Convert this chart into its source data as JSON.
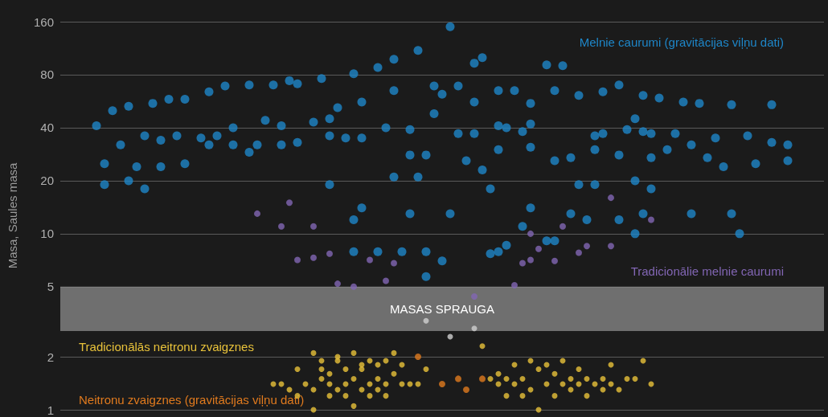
{
  "chart_data": {
    "type": "scatter",
    "ylabel": "Masa, Saules masa",
    "categories": [
      null,
      null,
      null,
      null,
      null,
      null,
      null,
      null,
      null,
      null,
      null,
      null,
      null,
      null,
      null,
      null,
      null,
      null,
      null,
      null,
      null,
      null,
      null,
      null,
      null,
      null,
      null,
      null,
      null,
      null,
      null,
      null,
      null,
      null,
      null,
      null,
      null,
      null,
      null,
      null,
      null,
      null,
      null,
      null,
      null,
      null,
      null,
      null,
      null,
      null,
      null,
      null,
      null,
      null,
      null,
      null,
      null,
      null,
      null,
      null,
      null,
      null,
      null,
      null,
      null,
      null,
      null,
      null,
      null,
      null,
      null,
      null,
      null,
      null,
      null,
      null,
      null,
      null,
      null,
      null,
      null,
      null,
      null,
      null,
      null,
      null,
      null,
      null,
      null,
      null,
      null,
      null,
      null,
      null,
      null
    ],
    "log": "y",
    "ylim": [
      1,
      160
    ],
    "yticks": [
      1,
      2,
      5,
      10,
      20,
      40,
      80,
      160
    ],
    "grid": "y",
    "tick_labels": "y",
    "marker": "circle",
    "bands": [
      {
        "axis": "y",
        "from": 2.8,
        "to": 5,
        "label": "MASAS SPRAUGA",
        "color": "#8c8c8c"
      }
    ],
    "series": [
      {
        "name": "Melnie caurumi (gravitācijas viļņu dati)",
        "color": "#1e86c8",
        "values": [
          null,
          null,
          null,
          null,
          41,
          25,
          50,
          32,
          20,
          24,
          18,
          55,
          34,
          58,
          36,
          25,
          null,
          35,
          32,
          36,
          69,
          32,
          null,
          29,
          32,
          44,
          70,
          32,
          74,
          33,
          null,
          43,
          76,
          45,
          52,
          35,
          81,
          56,
          null,
          88,
          40,
          65,
          7.9,
          28,
          110,
          28,
          69,
          62,
          150,
          37,
          26,
          93,
          23,
          18,
          41,
          40,
          65,
          38,
          55,
          null,
          91,
          65,
          90,
          27,
          61,
          12,
          36,
          64,
          null,
          70,
          39,
          45,
          38,
          37,
          59,
          30,
          37,
          56,
          32,
          55,
          27,
          35,
          24,
          54,
          10,
          36,
          25,
          null,
          54,
          null,
          32,
          null,
          null,
          null,
          null
        ]
      },
      {
        "color": "#1e86c8",
        "values": [
          null,
          null,
          null,
          null,
          null,
          19,
          null,
          null,
          53,
          null,
          36,
          null,
          24,
          null,
          null,
          58,
          null,
          null,
          64,
          null,
          null,
          40,
          null,
          70,
          null,
          null,
          null,
          41,
          null,
          71,
          null,
          null,
          null,
          36,
          null,
          null,
          12,
          35,
          null,
          7.9,
          null,
          98,
          null,
          39,
          21,
          5.7,
          48,
          7.0,
          13,
          69,
          null,
          56,
          100,
          7.7,
          65,
          8.6,
          null,
          11,
          31,
          null,
          9.1,
          26,
          null,
          13,
          19,
          null,
          30,
          37,
          null,
          28,
          null,
          10,
          61,
          27,
          null,
          null,
          null,
          null,
          13,
          null,
          null,
          null,
          null,
          13,
          null,
          null,
          null,
          null,
          33,
          null,
          26,
          null,
          null,
          null,
          null
        ]
      },
      {
        "color": "#1e86c8",
        "values": [
          null,
          null,
          null,
          null,
          null,
          null,
          null,
          null,
          null,
          null,
          null,
          null,
          null,
          null,
          null,
          null,
          null,
          null,
          null,
          null,
          null,
          null,
          null,
          null,
          null,
          null,
          null,
          null,
          null,
          null,
          null,
          null,
          null,
          19,
          null,
          null,
          7.9,
          14,
          null,
          null,
          null,
          21,
          null,
          13,
          null,
          7.9,
          null,
          null,
          null,
          null,
          null,
          37,
          null,
          null,
          30,
          null,
          null,
          null,
          42,
          null,
          null,
          9.1,
          null,
          null,
          null,
          null,
          19,
          null,
          null,
          12,
          null,
          20,
          13,
          18,
          null,
          null,
          null,
          null,
          null,
          null,
          null,
          null,
          null,
          null,
          null,
          null,
          null,
          null,
          null,
          null,
          null,
          null,
          null,
          null,
          null
        ]
      },
      {
        "color": "#1e86c8",
        "values": [
          null,
          null,
          null,
          null,
          null,
          null,
          null,
          null,
          null,
          null,
          null,
          null,
          null,
          null,
          null,
          null,
          null,
          null,
          null,
          null,
          null,
          null,
          null,
          null,
          null,
          null,
          null,
          null,
          null,
          null,
          null,
          null,
          null,
          null,
          null,
          null,
          null,
          null,
          null,
          null,
          null,
          null,
          null,
          null,
          null,
          null,
          null,
          null,
          null,
          null,
          null,
          null,
          null,
          null,
          7.9,
          null,
          null,
          null,
          14,
          null,
          null,
          null,
          null,
          null,
          null,
          null,
          null,
          null,
          null,
          null,
          null,
          null,
          null,
          null,
          null,
          null,
          null,
          null,
          null,
          null,
          null,
          null,
          null,
          null,
          null,
          null,
          null,
          null,
          null,
          null,
          null,
          null,
          null,
          null,
          null
        ]
      },
      {
        "name": "Tradicionālie melnie caurumi",
        "color": "#8266b4",
        "values": [
          null,
          null,
          null,
          null,
          null,
          null,
          null,
          null,
          null,
          null,
          null,
          null,
          null,
          null,
          null,
          null,
          null,
          null,
          null,
          null,
          null,
          null,
          null,
          null,
          13,
          null,
          null,
          11,
          15,
          7.1,
          null,
          7.3,
          null,
          7.7,
          5.2,
          null,
          5.0,
          null,
          7.1,
          null,
          5.4,
          6.8,
          null,
          null,
          null,
          null,
          null,
          null,
          null,
          null,
          null,
          4.4,
          null,
          null,
          null,
          null,
          5.1,
          6.8,
          10,
          8.2,
          null,
          7.0,
          11,
          null,
          7.8,
          8.5,
          null,
          null,
          8.5,
          null,
          null,
          null,
          null,
          12,
          null,
          null,
          null,
          null,
          null,
          null,
          null,
          null,
          null,
          null,
          null,
          null,
          null,
          null,
          null,
          null,
          null,
          null,
          null,
          null,
          null
        ]
      },
      {
        "color": "#8266b4",
        "values": [
          null,
          null,
          null,
          null,
          null,
          null,
          null,
          null,
          null,
          null,
          null,
          null,
          null,
          null,
          null,
          null,
          null,
          null,
          null,
          null,
          null,
          null,
          null,
          null,
          null,
          null,
          null,
          null,
          null,
          null,
          null,
          11,
          null,
          null,
          null,
          null,
          null,
          null,
          null,
          null,
          null,
          null,
          null,
          null,
          null,
          null,
          null,
          null,
          null,
          null,
          null,
          null,
          null,
          null,
          null,
          null,
          null,
          null,
          7.1,
          null,
          null,
          null,
          null,
          null,
          null,
          null,
          null,
          null,
          16,
          null,
          null,
          null,
          null,
          null,
          null,
          null,
          null,
          null,
          null,
          null,
          null,
          null,
          null,
          null,
          null,
          null,
          null,
          null,
          null,
          null,
          null,
          null,
          null,
          null,
          null
        ]
      },
      {
        "name": "Tradicionālās neitronu zvaigznes",
        "color": "#e8c23a",
        "values": [
          null,
          null,
          null,
          null,
          null,
          null,
          null,
          null,
          null,
          null,
          null,
          null,
          null,
          null,
          null,
          null,
          null,
          null,
          null,
          null,
          null,
          null,
          null,
          null,
          null,
          null,
          1.4,
          1.4,
          1.3,
          1.2,
          1.4,
          2.1,
          1.7,
          1.2,
          1.3,
          1.2,
          2.1,
          1.8,
          1.4,
          1.5,
          1.9,
          2.1,
          1.4,
          1.4,
          1.4,
          1.7,
          null,
          null,
          null,
          null,
          null,
          null,
          2.3,
          1.5,
          1.4,
          1.2,
          1.4,
          1.2,
          1.9,
          1.7,
          1.4,
          1.2,
          1.4,
          1.5,
          1.7,
          1.2,
          1.4,
          1.5,
          1.8,
          1.3,
          1.5,
          1.5,
          1.9,
          1.4,
          null,
          null,
          null,
          null,
          null,
          null,
          null,
          null,
          null,
          null,
          null,
          null,
          null,
          null,
          null,
          null,
          null,
          null,
          null,
          null,
          null
        ]
      },
      {
        "color": "#e8c23a",
        "values": [
          null,
          null,
          null,
          null,
          null,
          null,
          null,
          null,
          null,
          null,
          null,
          null,
          null,
          null,
          null,
          null,
          null,
          null,
          null,
          null,
          null,
          null,
          null,
          null,
          null,
          null,
          null,
          null,
          null,
          1.7,
          null,
          1.3,
          1.5,
          1.6,
          2.0,
          1.7,
          1.05,
          1.3,
          1.9,
          1.8,
          1.4,
          1.6,
          1.8,
          null,
          null,
          null,
          null,
          null,
          null,
          null,
          null,
          null,
          null,
          null,
          1.6,
          1.5,
          1.8,
          1.5,
          1.3,
          1.0,
          1.8,
          1.6,
          1.9,
          1.3,
          1.4,
          1.5,
          null,
          1.3,
          1.4,
          null,
          null,
          null,
          null,
          null,
          null,
          null,
          null,
          null,
          null,
          null,
          null,
          null,
          null,
          null,
          null,
          null,
          null,
          null,
          null,
          null,
          null,
          null,
          null,
          null,
          null
        ]
      },
      {
        "color": "#e8c23a",
        "values": [
          null,
          null,
          null,
          null,
          null,
          null,
          null,
          null,
          null,
          null,
          null,
          null,
          null,
          null,
          null,
          null,
          null,
          null,
          null,
          null,
          null,
          null,
          null,
          null,
          null,
          null,
          null,
          null,
          null,
          null,
          null,
          1.0,
          1.9,
          1.4,
          1.9,
          1.4,
          1.5,
          1.7,
          1.2,
          1.3,
          1.2,
          null,
          null,
          null,
          null,
          null,
          null,
          null,
          null,
          null,
          null,
          null,
          null,
          null,
          null,
          null,
          null,
          null,
          null,
          null,
          null,
          null,
          null,
          null,
          null,
          null,
          null,
          null,
          null,
          null,
          null,
          null,
          null,
          null,
          null,
          null,
          null,
          null,
          null,
          null,
          null,
          null,
          null,
          null,
          null,
          null,
          null,
          null,
          null,
          null,
          null,
          null,
          null,
          null,
          null
        ]
      },
      {
        "name": "Neitronu zvaigznes (gravitācijas viļņu dati)",
        "color": "#e07a1e",
        "values": [
          null,
          null,
          null,
          null,
          null,
          null,
          null,
          null,
          null,
          null,
          null,
          null,
          null,
          null,
          null,
          null,
          null,
          null,
          null,
          null,
          null,
          null,
          null,
          null,
          null,
          null,
          null,
          null,
          null,
          null,
          null,
          null,
          null,
          null,
          null,
          null,
          null,
          null,
          null,
          null,
          null,
          null,
          null,
          null,
          2.0,
          null,
          null,
          1.4,
          null,
          1.5,
          1.3,
          null,
          1.5,
          null,
          null,
          null,
          null,
          null,
          null,
          null,
          null,
          null,
          null,
          null,
          null,
          null,
          null,
          null,
          null,
          null,
          null,
          null,
          null,
          null,
          null,
          null,
          null,
          null,
          null,
          null,
          null,
          null,
          null,
          null,
          null,
          null,
          null,
          null,
          null,
          null,
          null,
          null,
          null,
          null,
          null
        ]
      },
      {
        "color": "#d0d0d0",
        "values": [
          null,
          null,
          null,
          null,
          null,
          null,
          null,
          null,
          null,
          null,
          null,
          null,
          null,
          null,
          null,
          null,
          null,
          null,
          null,
          null,
          null,
          null,
          null,
          null,
          null,
          null,
          null,
          null,
          null,
          null,
          null,
          null,
          null,
          null,
          null,
          null,
          null,
          null,
          null,
          null,
          null,
          null,
          null,
          null,
          null,
          3.2,
          null,
          null,
          2.6,
          null,
          null,
          2.9,
          null,
          null,
          null,
          null,
          null,
          null,
          null,
          null,
          null,
          null,
          null,
          null,
          null,
          null,
          null,
          null,
          null,
          null,
          null,
          null,
          null,
          null,
          null,
          null,
          null,
          null,
          null,
          null,
          null,
          null,
          null,
          null,
          null,
          null,
          null,
          null,
          null,
          null,
          null,
          null,
          null,
          null,
          null
        ]
      }
    ]
  }
}
